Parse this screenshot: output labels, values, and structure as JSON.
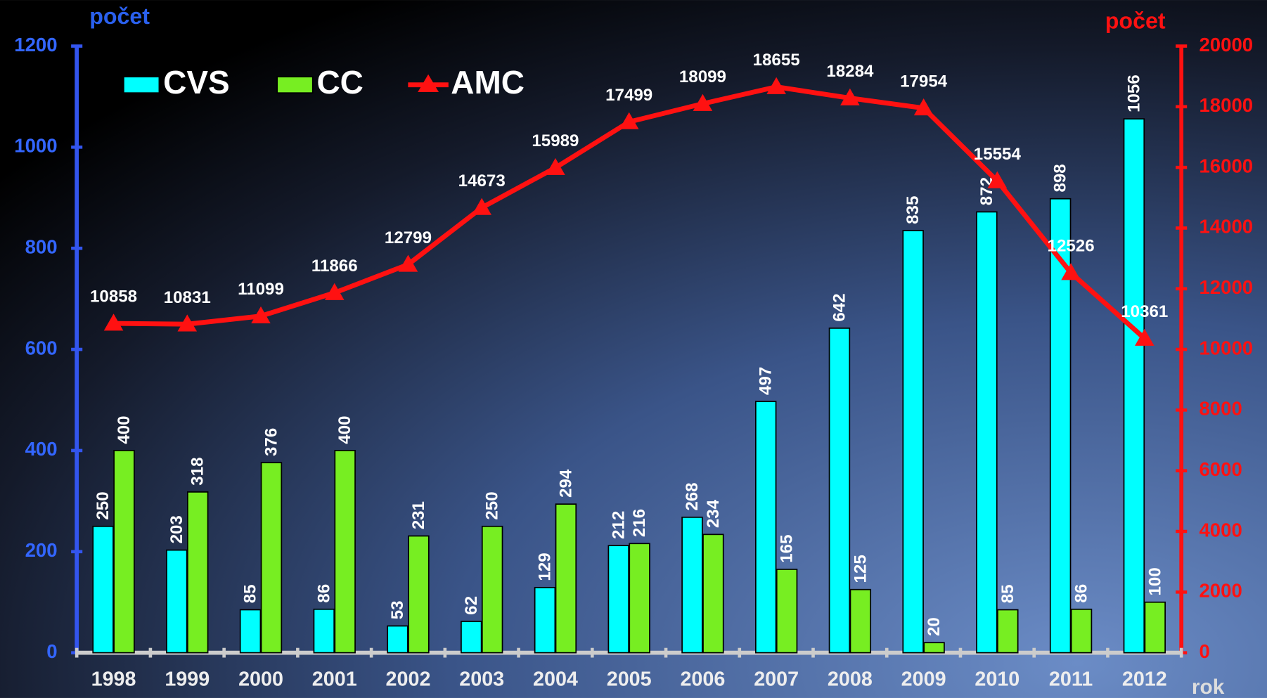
{
  "chart_data": {
    "type": "bar",
    "y_label": "počet",
    "y2_label": "počet",
    "x_label": "rok",
    "categories": [
      "1998",
      "1999",
      "2000",
      "2001",
      "2002",
      "2003",
      "2004",
      "2005",
      "2006",
      "2007",
      "2008",
      "2009",
      "2010",
      "2011",
      "2012"
    ],
    "series": [
      {
        "name": "CVS",
        "color": "#00ffff",
        "type": "bar",
        "values": [
          250,
          203,
          85,
          86,
          53,
          62,
          129,
          212,
          268,
          497,
          642,
          835,
          872,
          898,
          1056
        ]
      },
      {
        "name": "CC",
        "color": "#77ee22",
        "type": "bar",
        "values": [
          400,
          318,
          376,
          400,
          231,
          250,
          294,
          216,
          234,
          165,
          125,
          20,
          85,
          86,
          100
        ]
      },
      {
        "name": "AMC",
        "color": "#ff1111",
        "type": "line",
        "axis": "y2",
        "values": [
          10858,
          10831,
          11099,
          11866,
          12799,
          14673,
          15989,
          17499,
          18099,
          18655,
          18284,
          17954,
          15554,
          12526,
          10361
        ]
      }
    ],
    "ylim": [
      0,
      1200
    ],
    "yticks": [
      0,
      200,
      400,
      600,
      800,
      1000,
      1200
    ],
    "y2lim": [
      0,
      20000
    ],
    "y2ticks": [
      0,
      2000,
      4000,
      6000,
      8000,
      10000,
      12000,
      14000,
      16000,
      18000,
      20000
    ],
    "legend": "top-left"
  }
}
